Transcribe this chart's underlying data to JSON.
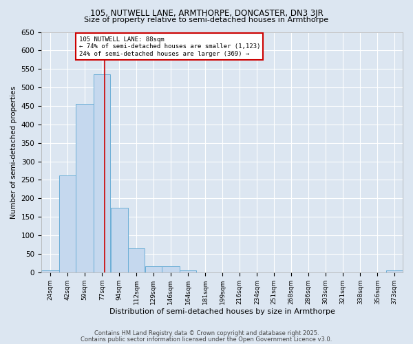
{
  "title1": "105, NUTWELL LANE, ARMTHORPE, DONCASTER, DN3 3JR",
  "title2": "Size of property relative to semi-detached houses in Armthorpe",
  "xlabel": "Distribution of semi-detached houses by size in Armthorpe",
  "ylabel": "Number of semi-detached properties",
  "bar_labels": [
    "24sqm",
    "42sqm",
    "59sqm",
    "77sqm",
    "94sqm",
    "112sqm",
    "129sqm",
    "146sqm",
    "164sqm",
    "181sqm",
    "199sqm",
    "216sqm",
    "234sqm",
    "251sqm",
    "268sqm",
    "286sqm",
    "303sqm",
    "321sqm",
    "338sqm",
    "356sqm",
    "373sqm"
  ],
  "bar_values": [
    5,
    262,
    455,
    535,
    175,
    65,
    17,
    17,
    5,
    0,
    0,
    0,
    0,
    0,
    0,
    0,
    0,
    0,
    0,
    0,
    5
  ],
  "bar_color": "#c5d8ee",
  "bar_edge_color": "#6baed6",
  "bg_color": "#dce6f1",
  "grid_color": "#ffffff",
  "annotation_line1": "105 NUTWELL LANE: 88sqm",
  "annotation_line2": "← 74% of semi-detached houses are smaller (1,123)",
  "annotation_line3": "24% of semi-detached houses are larger (369) →",
  "annotation_box_color": "#ffffff",
  "annotation_box_edge": "#cc0000",
  "red_line_x": 88,
  "ylim": [
    0,
    650
  ],
  "yticks": [
    0,
    50,
    100,
    150,
    200,
    250,
    300,
    350,
    400,
    450,
    500,
    550,
    600,
    650
  ],
  "footer1": "Contains HM Land Registry data © Crown copyright and database right 2025.",
  "footer2": "Contains public sector information licensed under the Open Government Licence v3.0."
}
